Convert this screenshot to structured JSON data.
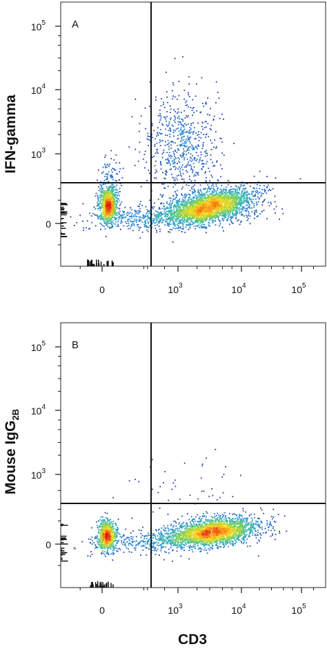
{
  "figure": {
    "x_axis_title": "CD3"
  },
  "chart_data": [
    {
      "type": "scatter",
      "panel_label": "A",
      "ylabel": "IFN-gamma",
      "ylabel_sub": "",
      "x_scale": "biexponential",
      "y_scale": "biexponential",
      "xlim": [
        -1,
        5.4
      ],
      "ylim": [
        -1,
        5.3
      ],
      "x_ticks": [
        {
          "value": 0,
          "base": "0",
          "exp": ""
        },
        {
          "value": 3,
          "base": "10",
          "exp": "3"
        },
        {
          "value": 4,
          "base": "10",
          "exp": "4"
        },
        {
          "value": 5,
          "base": "10",
          "exp": "5"
        }
      ],
      "y_ticks": [
        {
          "value": 0,
          "base": "0",
          "exp": ""
        },
        {
          "value": 3,
          "base": "10",
          "exp": "3"
        },
        {
          "value": 4,
          "base": "10",
          "exp": "4"
        },
        {
          "value": 5,
          "base": "10",
          "exp": "5"
        }
      ],
      "gate_x": 2.7,
      "gate_y": 2.1,
      "grid": false,
      "legend": "none",
      "populations": [
        {
          "name": "CD3- IFN-gamma-",
          "x": 0.1,
          "y": 0.3,
          "peak_density": "high"
        },
        {
          "name": "CD3+ IFN-gamma-",
          "x": 3.5,
          "y": 0.3,
          "peak_density": "very high"
        },
        {
          "name": "CD3+ IFN-gamma+",
          "x": 3.3,
          "y": 3.2,
          "peak_density": "low"
        }
      ]
    },
    {
      "type": "scatter",
      "panel_label": "B",
      "ylabel": "Mouse IgG",
      "ylabel_sub": "2B",
      "x_scale": "biexponential",
      "y_scale": "biexponential",
      "xlim": [
        -1,
        5.4
      ],
      "ylim": [
        -1,
        5.3
      ],
      "x_ticks": [
        {
          "value": 0,
          "base": "0",
          "exp": ""
        },
        {
          "value": 3,
          "base": "10",
          "exp": "3"
        },
        {
          "value": 4,
          "base": "10",
          "exp": "4"
        },
        {
          "value": 5,
          "base": "10",
          "exp": "5"
        }
      ],
      "y_ticks": [
        {
          "value": 0,
          "base": "0",
          "exp": ""
        },
        {
          "value": 3,
          "base": "10",
          "exp": "3"
        },
        {
          "value": 4,
          "base": "10",
          "exp": "4"
        },
        {
          "value": 5,
          "base": "10",
          "exp": "5"
        }
      ],
      "gate_x": 2.7,
      "gate_y": 2.1,
      "grid": false,
      "legend": "none",
      "populations": [
        {
          "name": "CD3- isotype",
          "x": 0.1,
          "y": 0.3,
          "peak_density": "high"
        },
        {
          "name": "CD3+ isotype",
          "x": 3.5,
          "y": 0.4,
          "peak_density": "very high"
        },
        {
          "name": "sparse events above gate",
          "x": 2.7,
          "y": 3.0,
          "peak_density": "very low"
        }
      ]
    }
  ]
}
